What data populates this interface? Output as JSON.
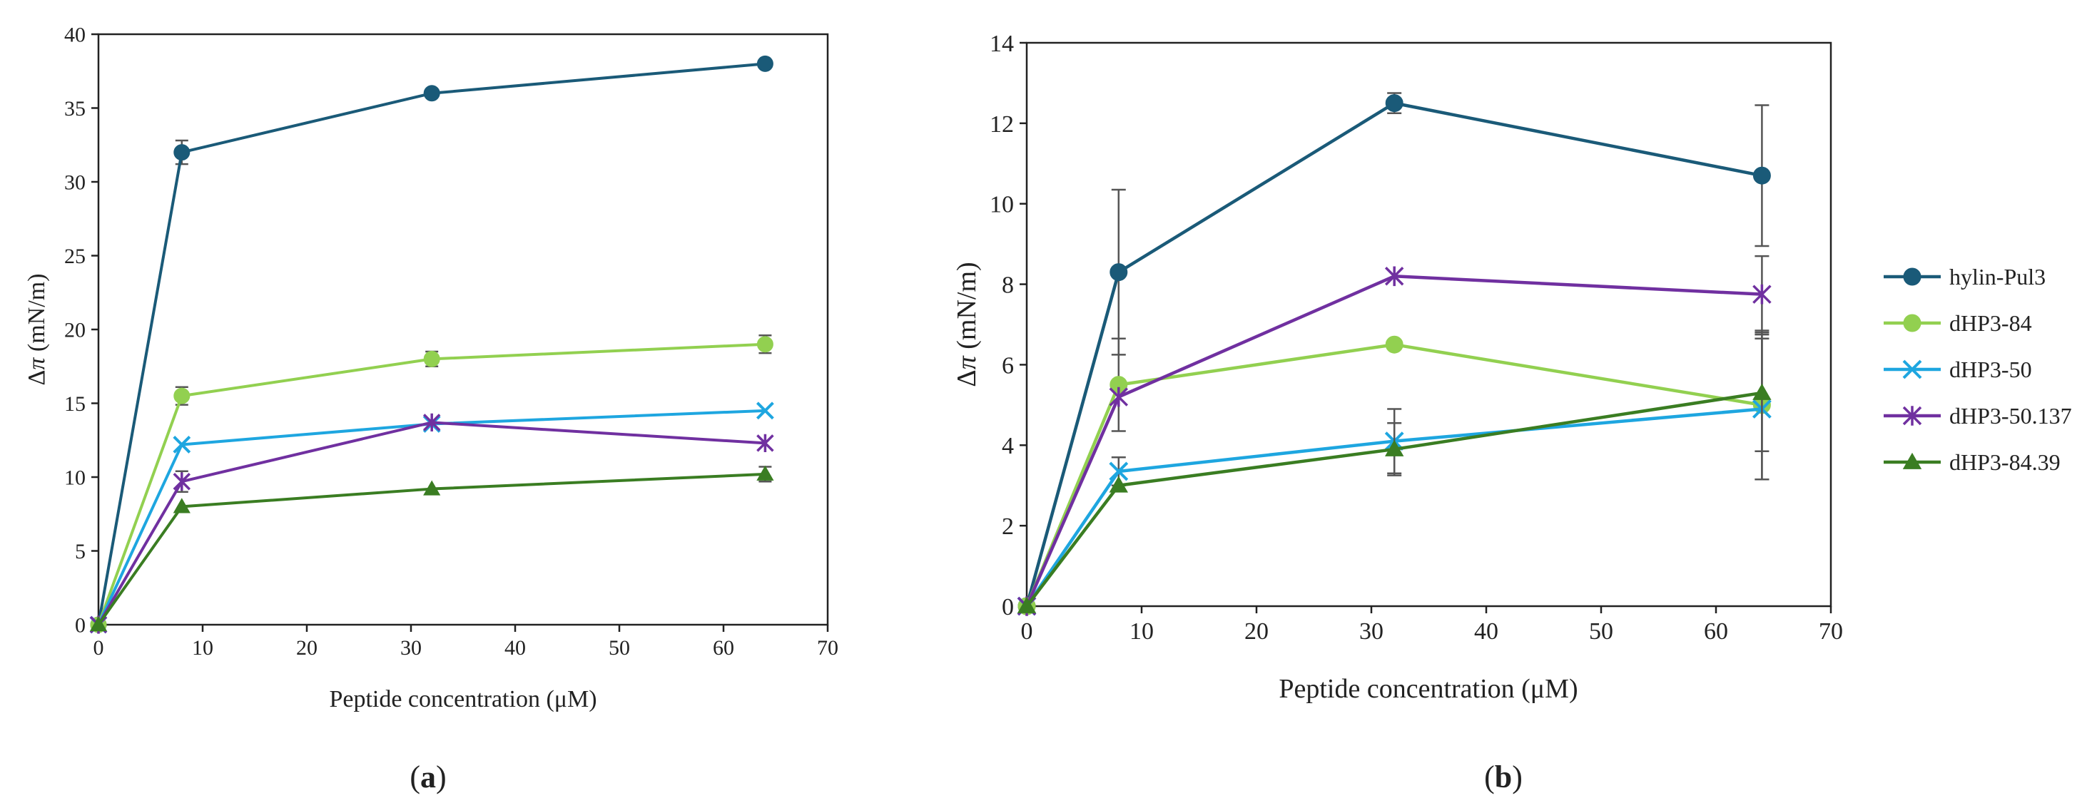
{
  "chart_data": [
    {
      "panel": "a",
      "panel_label_open": "(",
      "panel_label_letter": "a",
      "panel_label_close": ")",
      "type": "line",
      "title": "",
      "xlabel": "Peptide concentration (μM)",
      "ylabel_prefix": "Δ",
      "ylabel_symbol": "π",
      "ylabel_suffix": " (mN/m)",
      "xlim": [
        0,
        70
      ],
      "ylim": [
        0,
        40
      ],
      "x_ticks": [
        0,
        10,
        20,
        30,
        40,
        50,
        60,
        70
      ],
      "y_ticks": [
        0,
        5,
        10,
        15,
        20,
        25,
        30,
        35,
        40
      ],
      "grid": false,
      "legend": "none",
      "x": [
        0,
        8,
        32,
        64
      ],
      "series": [
        {
          "name": "hylin-Pul3",
          "color": "#1a5a78",
          "marker": "circle",
          "values": [
            0,
            32,
            36,
            38
          ],
          "errors": [
            0,
            0.8,
            0,
            0
          ]
        },
        {
          "name": "dHP3-84",
          "color": "#92d050",
          "marker": "circle",
          "values": [
            0,
            15.5,
            18,
            19
          ],
          "errors": [
            0,
            0.6,
            0.5,
            0.6
          ]
        },
        {
          "name": "dHP3-50",
          "color": "#1ea6e0",
          "marker": "x",
          "values": [
            0,
            12.2,
            13.6,
            14.5
          ],
          "errors": [
            0,
            0,
            0,
            0
          ]
        },
        {
          "name": "dHP3-50.137",
          "color": "#7030a0",
          "marker": "star",
          "values": [
            0,
            9.7,
            13.7,
            12.3
          ],
          "errors": [
            0,
            0.7,
            0,
            0
          ]
        },
        {
          "name": "dHP3-84.39",
          "color": "#3a7d22",
          "marker": "triangle",
          "values": [
            0,
            8,
            9.2,
            10.2
          ],
          "errors": [
            0,
            0,
            0,
            0.5
          ]
        }
      ]
    },
    {
      "panel": "b",
      "panel_label_open": "(",
      "panel_label_letter": "b",
      "panel_label_close": ")",
      "type": "line",
      "title": "",
      "xlabel": "Peptide concentration (μM)",
      "ylabel_prefix": "Δ",
      "ylabel_symbol": "π",
      "ylabel_suffix": " (mN/m)",
      "xlim": [
        0,
        70
      ],
      "ylim": [
        0,
        14
      ],
      "x_ticks": [
        0,
        10,
        20,
        30,
        40,
        50,
        60,
        70
      ],
      "y_ticks": [
        0,
        2,
        4,
        6,
        8,
        10,
        12,
        14
      ],
      "grid": false,
      "legend": "right",
      "x": [
        0,
        8,
        32,
        64
      ],
      "series": [
        {
          "name": "hylin-Pul3",
          "color": "#1a5a78",
          "marker": "circle",
          "values": [
            0,
            8.3,
            12.5,
            10.7
          ],
          "errors": [
            0,
            2.05,
            0.25,
            1.75
          ]
        },
        {
          "name": "dHP3-84",
          "color": "#92d050",
          "marker": "circle",
          "values": [
            0,
            5.5,
            6.5,
            5.0
          ],
          "errors": [
            0,
            1.15,
            0,
            1.85
          ]
        },
        {
          "name": "dHP3-50",
          "color": "#1ea6e0",
          "marker": "x",
          "values": [
            0,
            3.35,
            4.1,
            4.9
          ],
          "errors": [
            0,
            0.35,
            0.8,
            1.75
          ]
        },
        {
          "name": "dHP3-50.137",
          "color": "#7030a0",
          "marker": "star",
          "values": [
            0,
            5.2,
            8.2,
            7.75
          ],
          "errors": [
            0,
            0,
            0,
            0.95
          ]
        },
        {
          "name": "dHP3-84.39",
          "color": "#3a7d22",
          "marker": "triangle",
          "values": [
            0,
            3.0,
            3.9,
            5.3
          ],
          "errors": [
            0,
            0,
            0.65,
            1.45
          ]
        }
      ]
    }
  ]
}
